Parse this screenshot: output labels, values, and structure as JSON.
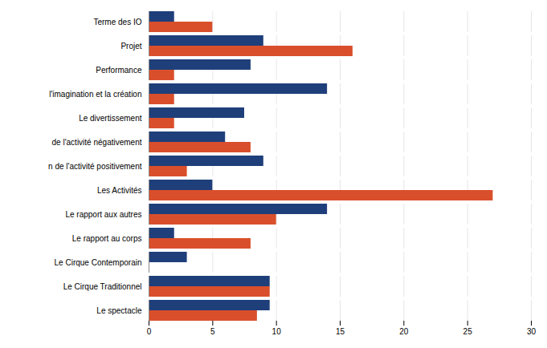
{
  "chart_data": {
    "type": "bar",
    "orientation": "horizontal",
    "categories": [
      "Le spectacle",
      "Le Cirque Traditionnel",
      "Le Cirque Contemporain",
      "Le rapport au corps",
      "Le rapport aux autres",
      "Les Activités",
      "n de l'activité positivement",
      "de l'activité négativement",
      "Le divertissement",
      "l'imagination et la création",
      "Performance",
      "Projet",
      "Terme des IO"
    ],
    "series": [
      {
        "color": "#1e3f7a",
        "values": [
          9.5,
          9.5,
          3,
          2,
          14,
          5,
          9,
          6,
          7.5,
          14,
          8,
          9,
          2
        ]
      },
      {
        "color": "#d94f2b",
        "values": [
          8.5,
          9.5,
          0,
          8,
          10,
          27,
          3,
          8,
          2,
          2,
          2,
          16,
          5
        ]
      }
    ],
    "xlim": [
      0,
      30
    ],
    "xticks": [
      0,
      5,
      10,
      15,
      20,
      25,
      30
    ],
    "grid": true
  }
}
